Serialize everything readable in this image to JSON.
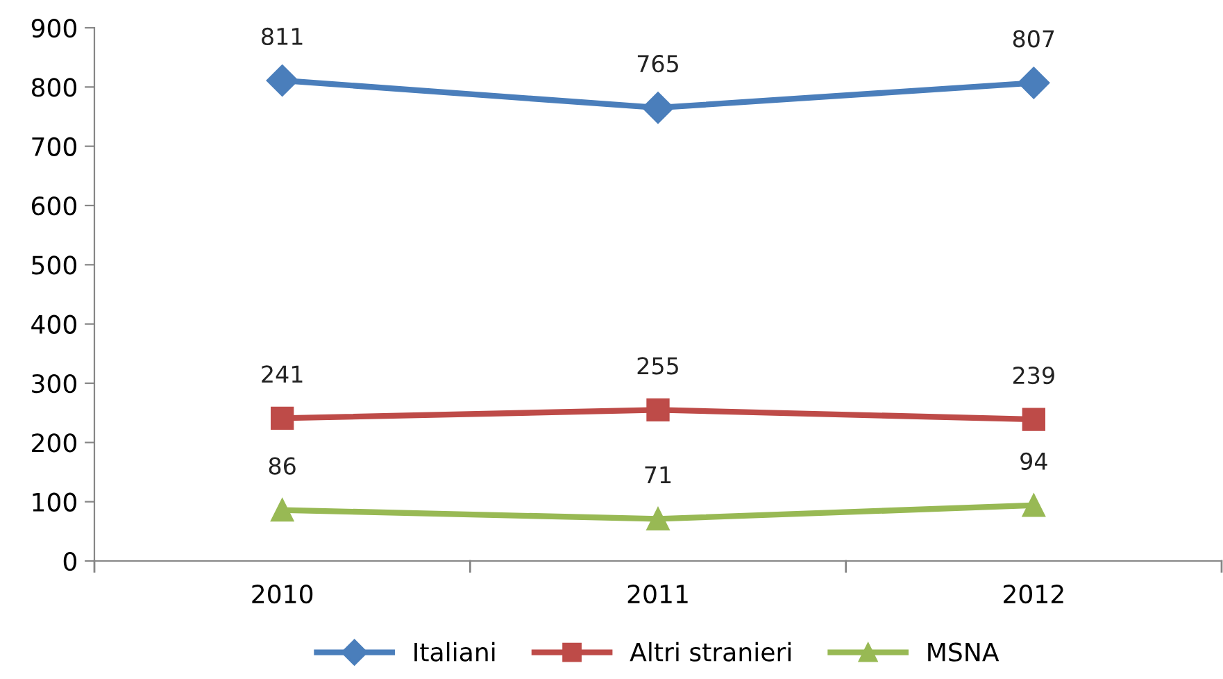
{
  "chart_data": {
    "type": "line",
    "categories": [
      "2010",
      "2011",
      "2012"
    ],
    "series": [
      {
        "name": "Italiani",
        "color": "#4a7ebb",
        "marker": "diamond",
        "values": [
          811,
          765,
          807
        ]
      },
      {
        "name": "Altri stranieri",
        "color": "#be4b48",
        "marker": "square",
        "values": [
          241,
          255,
          239
        ]
      },
      {
        "name": "MSNA",
        "color": "#98b954",
        "marker": "triangle",
        "values": [
          86,
          71,
          94
        ]
      }
    ],
    "ylim": [
      0,
      900
    ],
    "yticks": [
      0,
      100,
      200,
      300,
      400,
      500,
      600,
      700,
      800,
      900
    ],
    "grid": false,
    "legend": "bottom",
    "data_labels": true,
    "line_style": "solid"
  }
}
